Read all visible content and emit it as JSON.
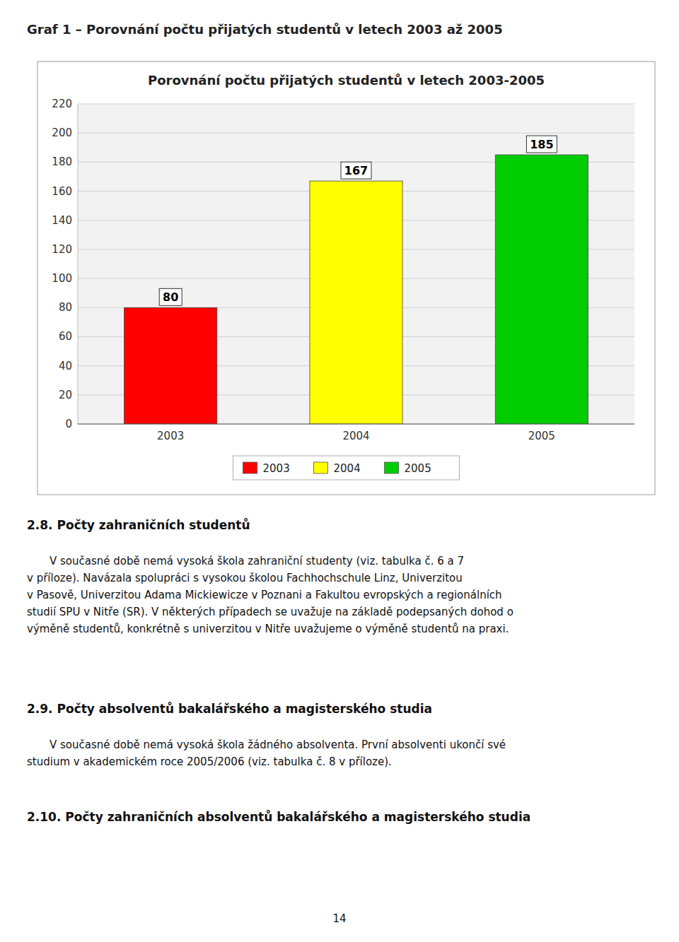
{
  "page_title": "Graf 1 – Porovnání počtu přijatých studentů v letech 2003 až 2005",
  "chart_data": {
    "type": "bar",
    "title": "Porovnání počtu přijatých studentů v letech 2003-2005",
    "categories": [
      "2003",
      "2004",
      "2005"
    ],
    "values": [
      80,
      167,
      185
    ],
    "colors": [
      "#ff0000",
      "#ffff00",
      "#00cc00"
    ],
    "ylim": [
      0,
      220
    ],
    "yticks": [
      0,
      20,
      40,
      60,
      80,
      100,
      120,
      140,
      160,
      180,
      200,
      220
    ],
    "grid": true,
    "data_labels": true,
    "legend": "bottom"
  },
  "sections": [
    {
      "title": "2.8. Počty zahraničních studentů",
      "body": "V současné době nemá vysoká škola zahraniční studenty (viz. tabulka č. 6 a 7\nv příloze). Navázala spolupráci s vysokou školou Fachhochschule Linz, Univerzitou\nv Pasově, Univerzitou Adama Mickiewicze v Poznani a Fakultou evropských a regionálních\nstudií SPU v Nitře (SR). V některých případech se uvažuje na základě podepsaných dohod o\nvýměně studentů, konkrétně s univerzitou v Nitře uvažujeme o výměně studentů na praxi."
    },
    {
      "title": "2.9. Počty absolventů bakalářského a magisterského studia",
      "body": "V současné době nemá vysoká škola žádného absolventa. První absolventi ukončí své\nstudium v akademickém roce 2005/2006 (viz. tabulka č. 8 v příloze)."
    },
    {
      "title": "2.10. Počty zahraničních absolventů bakalářského a magisterského studia"
    }
  ],
  "page_number": "14"
}
